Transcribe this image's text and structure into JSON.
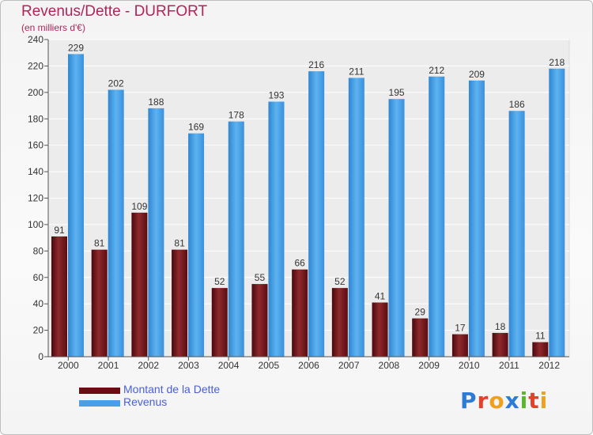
{
  "title": "Revenus/Dette - DURFORT",
  "subtitle": "(en milliers d'€)",
  "legend": [
    {
      "label": "Montant de la Dette",
      "color": "#6b0d12"
    },
    {
      "label": "Revenus",
      "color": "#4a9fe6"
    }
  ],
  "logo": {
    "letters": [
      "P",
      "r",
      "o",
      "x",
      "i",
      "t",
      "i"
    ],
    "colors": [
      "#2e7bd6",
      "#e2412b",
      "#f0a020",
      "#2e7bd6",
      "#5cb531",
      "#e2412b",
      "#f0a020"
    ]
  },
  "colors": {
    "debt": "#7a1a1e",
    "revenue": "#4ca3e8",
    "title": "#b1245a",
    "legend_text": "#4a60d8"
  },
  "chart_data": {
    "type": "bar",
    "categories": [
      "2000",
      "2001",
      "2002",
      "2003",
      "2004",
      "2005",
      "2006",
      "2007",
      "2008",
      "2009",
      "2010",
      "2011",
      "2012"
    ],
    "series": [
      {
        "name": "Montant de la Dette",
        "values": [
          91,
          81,
          109,
          81,
          52,
          55,
          66,
          52,
          41,
          29,
          17,
          18,
          11
        ]
      },
      {
        "name": "Revenus",
        "values": [
          229,
          202,
          188,
          169,
          178,
          193,
          216,
          211,
          195,
          212,
          209,
          186,
          218
        ]
      }
    ],
    "yticks": [
      0,
      20,
      40,
      60,
      80,
      100,
      120,
      140,
      160,
      180,
      200,
      220,
      240
    ],
    "ylim": [
      0,
      240
    ],
    "title": "Revenus/Dette - DURFORT",
    "ylabel": "(en milliers d'€)",
    "xlabel": "",
    "grid": true
  }
}
